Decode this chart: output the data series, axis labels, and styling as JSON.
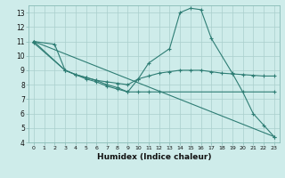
{
  "background_color": "#ceecea",
  "grid_color": "#aacfcc",
  "line_color": "#2e7d74",
  "xlabel": "Humidex (Indice chaleur)",
  "xlim": [
    -0.5,
    23.5
  ],
  "ylim": [
    4,
    13.5
  ],
  "xticks": [
    0,
    1,
    2,
    3,
    4,
    5,
    6,
    7,
    8,
    9,
    10,
    11,
    12,
    13,
    14,
    15,
    16,
    17,
    18,
    19,
    20,
    21,
    22,
    23
  ],
  "yticks": [
    4,
    5,
    6,
    7,
    8,
    9,
    10,
    11,
    12,
    13
  ],
  "series": [
    {
      "x": [
        0,
        2,
        3,
        4,
        5,
        6,
        7,
        8,
        9,
        10,
        11,
        13,
        14,
        15,
        16,
        17,
        19,
        20,
        21,
        22,
        23
      ],
      "y": [
        11.0,
        10.8,
        9.0,
        8.7,
        8.5,
        8.3,
        8.0,
        7.8,
        7.5,
        8.4,
        9.5,
        10.5,
        13.0,
        13.3,
        13.2,
        11.2,
        8.8,
        7.5,
        6.0,
        5.2,
        4.4
      ]
    },
    {
      "x": [
        0,
        3,
        4,
        5,
        6,
        7,
        8,
        9,
        10,
        11,
        12,
        13,
        14,
        15,
        16,
        17,
        18,
        19,
        20,
        21,
        22,
        23
      ],
      "y": [
        11.0,
        9.0,
        8.7,
        8.5,
        8.3,
        8.2,
        8.1,
        8.0,
        8.4,
        8.6,
        8.8,
        8.9,
        9.0,
        9.0,
        9.0,
        8.9,
        8.8,
        8.75,
        8.7,
        8.65,
        8.6,
        8.6
      ]
    },
    {
      "x": [
        0,
        3,
        4,
        5,
        6,
        7,
        8,
        9,
        10,
        11,
        12,
        23
      ],
      "y": [
        10.9,
        9.0,
        8.7,
        8.4,
        8.2,
        7.9,
        7.7,
        7.5,
        7.5,
        7.5,
        7.5,
        7.5
      ]
    },
    {
      "x": [
        0,
        23
      ],
      "y": [
        11.0,
        4.4
      ]
    }
  ]
}
